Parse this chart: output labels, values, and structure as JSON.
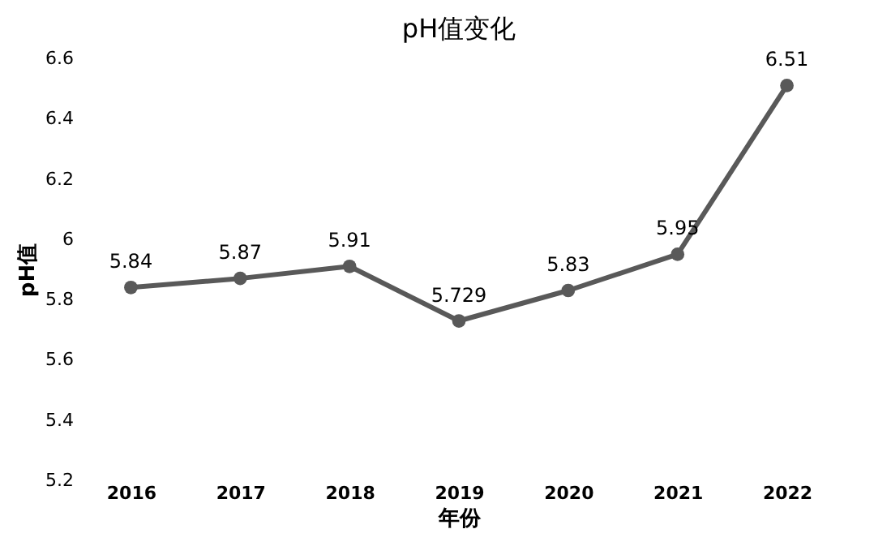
{
  "chart_data": {
    "type": "line",
    "title": "pH值变化",
    "xlabel": "年份",
    "ylabel": "pH值",
    "categories": [
      "2016",
      "2017",
      "2018",
      "2019",
      "2020",
      "2021",
      "2022"
    ],
    "series": [
      {
        "color": "#595959",
        "values": [
          5.84,
          5.87,
          5.91,
          5.729,
          5.83,
          5.95,
          6.51
        ]
      }
    ],
    "ylim": [
      5.2,
      6.6
    ],
    "yticks": [
      5.2,
      5.4,
      5.6,
      5.8,
      6,
      6.2,
      6.4,
      6.6
    ],
    "data_labels": true,
    "marker": "circle",
    "line_style": "solid",
    "grid": false,
    "legend": false
  }
}
